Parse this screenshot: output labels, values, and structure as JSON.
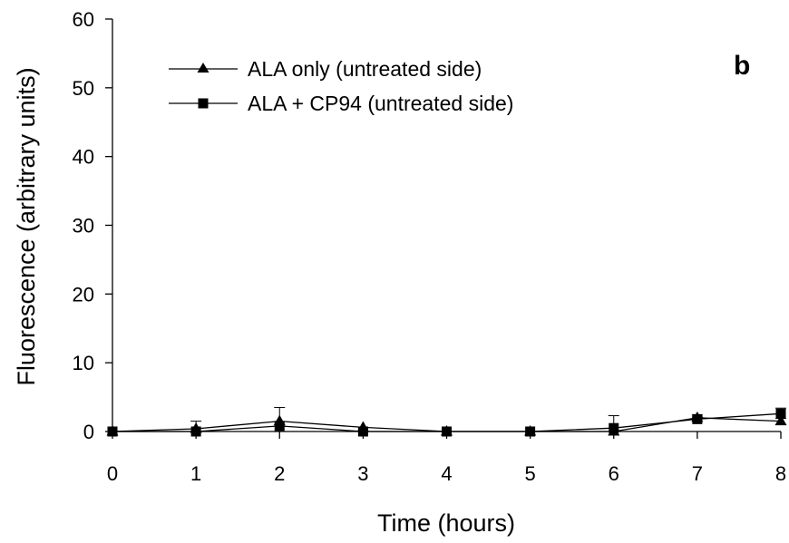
{
  "chart_data": {
    "type": "line",
    "panel_label": "b",
    "xlabel": "Time (hours)",
    "ylabel": "Fluorescence (arbitrary units)",
    "xlim": [
      0,
      8
    ],
    "ylim": [
      0,
      60
    ],
    "x_ticks": [
      "0",
      "1",
      "2",
      "3",
      "4",
      "5",
      "6",
      "7",
      "8"
    ],
    "y_ticks": [
      "0",
      "10",
      "20",
      "30",
      "40",
      "50",
      "60"
    ],
    "grid": false,
    "legend_position": "top-left",
    "x": [
      0,
      1,
      2,
      3,
      4,
      5,
      6,
      7,
      8
    ],
    "series": [
      {
        "name": "ALA only (untreated side)",
        "marker": "triangle",
        "values": [
          0,
          0.4,
          1.5,
          0.6,
          0,
          0,
          0,
          2.0,
          1.5
        ],
        "error": [
          0,
          1.1,
          2.0,
          0,
          0,
          0,
          0,
          0.4,
          0.4
        ]
      },
      {
        "name": "ALA + CP94 (untreated side)",
        "marker": "square",
        "values": [
          0,
          0,
          0.8,
          0,
          0,
          0,
          0.5,
          1.8,
          2.6
        ],
        "error": [
          0,
          0,
          0,
          0,
          0,
          0,
          1.8,
          0.3,
          0.8
        ]
      }
    ]
  }
}
